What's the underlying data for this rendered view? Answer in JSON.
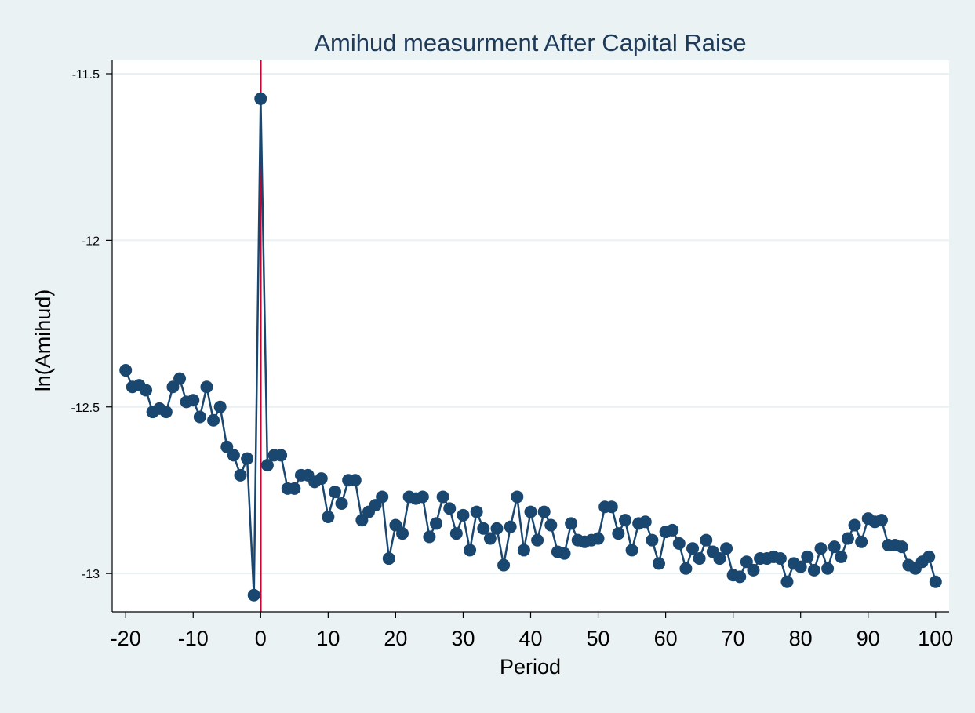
{
  "chart_data": {
    "type": "line",
    "title": "Amihud measurment  After Capital Raise",
    "xlabel": "Period",
    "ylabel": "ln(Amihud)",
    "xlim": [
      -22,
      102
    ],
    "ylim": [
      -13.115,
      -11.46
    ],
    "x_ticks": [
      -20,
      -10,
      0,
      10,
      20,
      30,
      40,
      50,
      60,
      70,
      80,
      90,
      100
    ],
    "y_ticks": [
      -11.5,
      -12,
      -12.5,
      -13
    ],
    "x_tick_labels": [
      "-20",
      "-10",
      "0",
      "10",
      "20",
      "30",
      "40",
      "50",
      "60",
      "70",
      "80",
      "90",
      "100"
    ],
    "y_tick_labels": [
      "-11.5",
      "-12",
      "-12.5",
      "-13"
    ],
    "grid": true,
    "reference_line_x": 0,
    "colors": {
      "background": "#eaf2f3",
      "plot_area": "#ffffff",
      "series": "#1a476f",
      "reference_line": "#c10534",
      "grid": "#e8f0f1",
      "title": "#1f3b5a"
    },
    "series": [
      {
        "x": [
          -20,
          -19,
          -18,
          -17,
          -16,
          -15,
          -14,
          -13,
          -12,
          -11,
          -10,
          -9,
          -8,
          -7,
          -6,
          -5,
          -4,
          -3,
          -2,
          -1,
          0,
          1,
          2,
          3,
          4,
          5,
          6,
          7,
          8,
          9,
          10,
          11,
          12,
          13,
          14,
          15,
          16,
          17,
          18,
          19,
          20,
          21,
          22,
          23,
          24,
          25,
          26,
          27,
          28,
          29,
          30,
          31,
          32,
          33,
          34,
          35,
          36,
          37,
          38,
          39,
          40,
          41,
          42,
          43,
          44,
          45,
          46,
          47,
          48,
          49,
          50,
          51,
          52,
          53,
          54,
          55,
          56,
          57,
          58,
          59,
          60,
          61,
          62,
          63,
          64,
          65,
          66,
          67,
          68,
          69,
          70,
          71,
          72,
          73,
          74,
          75,
          76,
          77,
          78,
          79,
          80,
          81,
          82,
          83,
          84,
          85,
          86,
          87,
          88,
          89,
          90,
          91,
          92,
          93,
          94,
          95,
          96,
          97,
          98,
          99,
          100
        ],
        "values": [
          -12.39,
          -12.44,
          -12.435,
          -12.45,
          -12.515,
          -12.505,
          -12.515,
          -12.44,
          -12.415,
          -12.485,
          -12.48,
          -12.53,
          -12.44,
          -12.54,
          -12.5,
          -12.62,
          -12.645,
          -12.705,
          -12.655,
          -13.065,
          -11.575,
          -12.675,
          -12.645,
          -12.645,
          -12.745,
          -12.745,
          -12.705,
          -12.705,
          -12.725,
          -12.715,
          -12.83,
          -12.755,
          -12.79,
          -12.72,
          -12.72,
          -12.84,
          -12.815,
          -12.795,
          -12.77,
          -12.955,
          -12.855,
          -12.88,
          -12.77,
          -12.775,
          -12.77,
          -12.89,
          -12.85,
          -12.77,
          -12.805,
          -12.88,
          -12.825,
          -12.93,
          -12.815,
          -12.865,
          -12.895,
          -12.865,
          -12.975,
          -12.86,
          -12.77,
          -12.93,
          -12.815,
          -12.9,
          -12.815,
          -12.855,
          -12.935,
          -12.94,
          -12.85,
          -12.9,
          -12.905,
          -12.9,
          -12.895,
          -12.8,
          -12.8,
          -12.88,
          -12.84,
          -12.93,
          -12.85,
          -12.845,
          -12.9,
          -12.97,
          -12.875,
          -12.87,
          -12.91,
          -12.985,
          -12.925,
          -12.955,
          -12.9,
          -12.935,
          -12.955,
          -12.925,
          -13.005,
          -13.01,
          -12.965,
          -12.99,
          -12.955,
          -12.955,
          -12.95,
          -12.955,
          -13.025,
          -12.97,
          -12.98,
          -12.95,
          -12.99,
          -12.925,
          -12.985,
          -12.92,
          -12.95,
          -12.895,
          -12.855,
          -12.905,
          -12.835,
          -12.845,
          -12.84,
          -12.915,
          -12.915,
          -12.92,
          -12.975,
          -12.985,
          -12.965,
          -12.95,
          -13.025
        ]
      }
    ]
  }
}
